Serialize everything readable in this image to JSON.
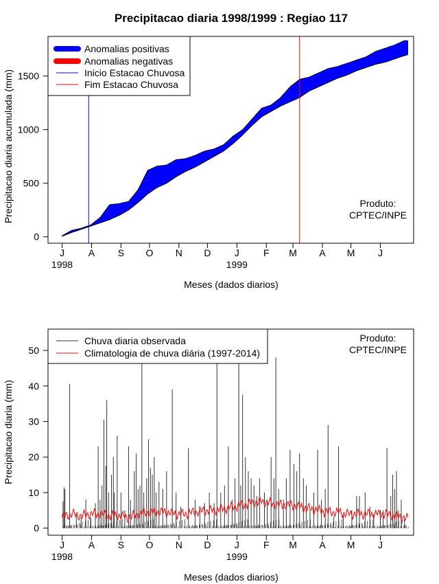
{
  "title": "Precipitacao diaria 1998/1999 : Regiao 117",
  "produto": [
    "Produto:",
    "CPTEC/INPE"
  ],
  "chart_data": [
    {
      "type": "area",
      "id": "top",
      "ylabel": "Precipitacao diaria acumulada (mm)",
      "xlabel": "Meses (dados diarios)",
      "ylim": [
        -60,
        1870
      ],
      "yticks": [
        0,
        500,
        1000,
        1500
      ],
      "xticks": [
        {
          "label": "J",
          "day": 0
        },
        {
          "label": "A",
          "day": 31
        },
        {
          "label": "S",
          "day": 62
        },
        {
          "label": "O",
          "day": 92
        },
        {
          "label": "N",
          "day": 123
        },
        {
          "label": "D",
          "day": 153
        },
        {
          "label": "J",
          "day": 184
        },
        {
          "label": "F",
          "day": 215
        },
        {
          "label": "M",
          "day": 243
        },
        {
          "label": "A",
          "day": 274
        },
        {
          "label": "M",
          "day": 304
        },
        {
          "label": "J",
          "day": 335
        }
      ],
      "year_labels": [
        {
          "label": "1998",
          "day": 0
        },
        {
          "label": "1999",
          "day": 184
        }
      ],
      "legend": [
        "Anomalias positivas",
        "Anomalias negativas",
        "Inicio Estacao Chuvosa",
        "Fim Estacao Chuvosa"
      ],
      "colors": {
        "positive": "#0000ff",
        "negative": "#ff0000",
        "inicio": "#0000ff",
        "fim": "#ff0000"
      },
      "inicio_day": 28,
      "fim_day": 250,
      "observed_cum": {
        "days": [
          0,
          10,
          20,
          30,
          40,
          50,
          60,
          70,
          80,
          90,
          100,
          110,
          120,
          130,
          140,
          150,
          160,
          170,
          180,
          190,
          200,
          210,
          220,
          230,
          240,
          250,
          260,
          270,
          280,
          290,
          300,
          310,
          320,
          330,
          340,
          350,
          360,
          364
        ],
        "values": [
          10,
          60,
          80,
          110,
          180,
          300,
          310,
          330,
          440,
          620,
          660,
          670,
          720,
          730,
          760,
          800,
          820,
          860,
          940,
          1000,
          1100,
          1200,
          1230,
          1300,
          1400,
          1470,
          1490,
          1530,
          1570,
          1590,
          1620,
          1650,
          1680,
          1730,
          1760,
          1790,
          1830,
          1830
        ]
      },
      "climatology_cum": {
        "days": [
          0,
          10,
          20,
          30,
          40,
          50,
          60,
          70,
          80,
          90,
          100,
          110,
          120,
          130,
          140,
          150,
          160,
          170,
          180,
          190,
          200,
          210,
          220,
          230,
          240,
          250,
          260,
          270,
          280,
          290,
          300,
          310,
          320,
          330,
          340,
          350,
          360,
          364
        ],
        "values": [
          5,
          40,
          70,
          100,
          130,
          160,
          200,
          250,
          320,
          400,
          460,
          500,
          560,
          610,
          650,
          700,
          750,
          800,
          870,
          950,
          1040,
          1120,
          1170,
          1220,
          1260,
          1300,
          1360,
          1400,
          1440,
          1480,
          1510,
          1550,
          1580,
          1610,
          1630,
          1660,
          1690,
          1700
        ]
      }
    },
    {
      "type": "bar",
      "id": "bottom",
      "ylabel": "Precipitacao diaria (mm)",
      "xlabel": "Meses (dados diarios)",
      "ylim": [
        -2,
        56
      ],
      "yticks": [
        0,
        10,
        20,
        30,
        40,
        50
      ],
      "legend": [
        "Chuva diaria observada",
        "Climatologia de chuva diária (1997-2014)"
      ],
      "colors": {
        "observed": "#333333",
        "climatology": "#ff0000"
      },
      "observed_peaks": [
        {
          "day": 1,
          "value": 7.5
        },
        {
          "day": 2,
          "value": 11.5
        },
        {
          "day": 3,
          "value": 11
        },
        {
          "day": 8,
          "value": 40.5
        },
        {
          "day": 15,
          "value": 4
        },
        {
          "day": 20,
          "value": 3
        },
        {
          "day": 25,
          "value": 8
        },
        {
          "day": 30,
          "value": 3
        },
        {
          "day": 35,
          "value": 7
        },
        {
          "day": 38,
          "value": 23
        },
        {
          "day": 40,
          "value": 8
        },
        {
          "day": 42,
          "value": 12
        },
        {
          "day": 44,
          "value": 30.5
        },
        {
          "day": 46,
          "value": 17.5
        },
        {
          "day": 47,
          "value": 36
        },
        {
          "day": 49,
          "value": 10
        },
        {
          "day": 52,
          "value": 15
        },
        {
          "day": 54,
          "value": 20
        },
        {
          "day": 55,
          "value": 10
        },
        {
          "day": 58,
          "value": 26
        },
        {
          "day": 62,
          "value": 10
        },
        {
          "day": 66,
          "value": 5
        },
        {
          "day": 70,
          "value": 23
        },
        {
          "day": 72,
          "value": 8
        },
        {
          "day": 76,
          "value": 16
        },
        {
          "day": 78,
          "value": 21
        },
        {
          "day": 80,
          "value": 11
        },
        {
          "day": 82,
          "value": 12
        },
        {
          "day": 84,
          "value": 47
        },
        {
          "day": 86,
          "value": 10
        },
        {
          "day": 89,
          "value": 14
        },
        {
          "day": 91,
          "value": 25
        },
        {
          "day": 93,
          "value": 17
        },
        {
          "day": 95,
          "value": 15
        },
        {
          "day": 97,
          "value": 20
        },
        {
          "day": 99,
          "value": 10
        },
        {
          "day": 102,
          "value": 13
        },
        {
          "day": 106,
          "value": 11
        },
        {
          "day": 110,
          "value": 16
        },
        {
          "day": 116,
          "value": 39
        },
        {
          "day": 120,
          "value": 10
        },
        {
          "day": 125,
          "value": 6
        },
        {
          "day": 133,
          "value": 22.5
        },
        {
          "day": 140,
          "value": 8
        },
        {
          "day": 145,
          "value": 5
        },
        {
          "day": 150,
          "value": 7
        },
        {
          "day": 155,
          "value": 10
        },
        {
          "day": 160,
          "value": 7
        },
        {
          "day": 163,
          "value": 47
        },
        {
          "day": 167,
          "value": 10
        },
        {
          "day": 171,
          "value": 12
        },
        {
          "day": 175,
          "value": 23
        },
        {
          "day": 179,
          "value": 8
        },
        {
          "day": 182,
          "value": 14
        },
        {
          "day": 186,
          "value": 47
        },
        {
          "day": 188,
          "value": 12
        },
        {
          "day": 190,
          "value": 37.5
        },
        {
          "day": 193,
          "value": 20
        },
        {
          "day": 196,
          "value": 16
        },
        {
          "day": 199,
          "value": 14
        },
        {
          "day": 202,
          "value": 12
        },
        {
          "day": 205,
          "value": 9
        },
        {
          "day": 208,
          "value": 14
        },
        {
          "day": 213,
          "value": 10
        },
        {
          "day": 216,
          "value": 8
        },
        {
          "day": 220,
          "value": 20
        },
        {
          "day": 223,
          "value": 14
        },
        {
          "day": 225,
          "value": 48
        },
        {
          "day": 228,
          "value": 11
        },
        {
          "day": 233,
          "value": 8
        },
        {
          "day": 236,
          "value": 14
        },
        {
          "day": 240,
          "value": 22
        },
        {
          "day": 244,
          "value": 18
        },
        {
          "day": 247,
          "value": 16
        },
        {
          "day": 250,
          "value": 21
        },
        {
          "day": 254,
          "value": 14
        },
        {
          "day": 257,
          "value": 12
        },
        {
          "day": 261,
          "value": 5
        },
        {
          "day": 265,
          "value": 10
        },
        {
          "day": 269,
          "value": 22
        },
        {
          "day": 273,
          "value": 8
        },
        {
          "day": 277,
          "value": 11
        },
        {
          "day": 280,
          "value": 29
        },
        {
          "day": 286,
          "value": 3
        },
        {
          "day": 291,
          "value": 23
        },
        {
          "day": 296,
          "value": 4
        },
        {
          "day": 305,
          "value": 5
        },
        {
          "day": 310,
          "value": 9
        },
        {
          "day": 313,
          "value": 9
        },
        {
          "day": 319,
          "value": 10
        },
        {
          "day": 324,
          "value": 6
        },
        {
          "day": 328,
          "value": 4
        },
        {
          "day": 335,
          "value": 5
        },
        {
          "day": 338,
          "value": 5
        },
        {
          "day": 342,
          "value": 22.5
        },
        {
          "day": 346,
          "value": 9
        },
        {
          "day": 348,
          "value": 15
        },
        {
          "day": 350,
          "value": 11
        },
        {
          "day": 352,
          "value": 16
        },
        {
          "day": 354,
          "value": 5
        },
        {
          "day": 357,
          "value": 8
        },
        {
          "day": 361,
          "value": 1
        }
      ],
      "climatology": {
        "days": [
          0,
          10,
          20,
          30,
          40,
          50,
          60,
          70,
          80,
          90,
          100,
          110,
          120,
          130,
          140,
          150,
          160,
          170,
          180,
          190,
          200,
          210,
          220,
          230,
          240,
          250,
          260,
          270,
          280,
          290,
          300,
          310,
          320,
          330,
          340,
          350,
          360,
          364
        ],
        "values": [
          3,
          4,
          3.5,
          4,
          4,
          3.5,
          3.5,
          3,
          4,
          4.5,
          4.5,
          4.5,
          4,
          4,
          4.5,
          5,
          5,
          5.5,
          6,
          6.5,
          7,
          7.5,
          7,
          6.5,
          6.5,
          6,
          5.5,
          5,
          4.5,
          4.5,
          4,
          4,
          4,
          4,
          4,
          3.5,
          3,
          2.5
        ]
      }
    }
  ]
}
